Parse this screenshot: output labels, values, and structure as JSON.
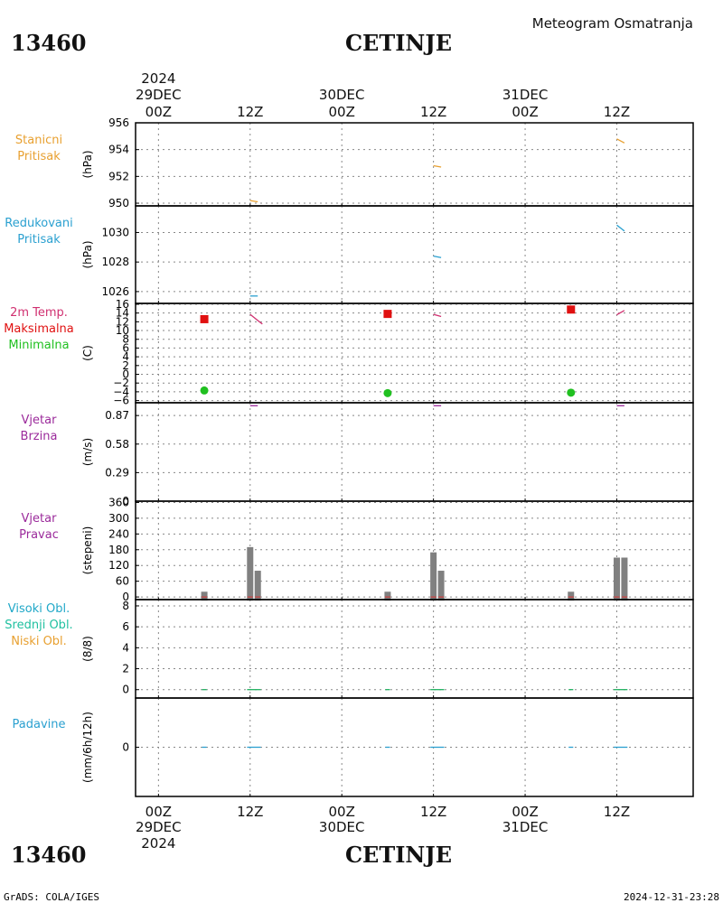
{
  "header": {
    "station_id": "13460",
    "station_name": "CETINJE",
    "product": "Meteogram Osmatranja"
  },
  "footer": {
    "left": "GrADS: COLA/IGES",
    "right": "2024-12-31-23:28"
  },
  "time_axis": {
    "year": "2024",
    "ticks": [
      {
        "hour": 0,
        "label": "00Z",
        "day": "29DEC"
      },
      {
        "hour": 12,
        "label": "12Z",
        "day": ""
      },
      {
        "hour": 24,
        "label": "00Z",
        "day": "30DEC"
      },
      {
        "hour": 36,
        "label": "12Z",
        "day": ""
      },
      {
        "hour": 48,
        "label": "00Z",
        "day": "31DEC"
      },
      {
        "hour": 60,
        "label": "12Z",
        "day": ""
      }
    ],
    "range_hours": [
      -3,
      70
    ]
  },
  "chart_data": [
    {
      "id": "pressure_station",
      "type": "line",
      "labels": [
        "Stanicni",
        "Pritisak"
      ],
      "label_color": "#e8a030",
      "unit": "(hPa)",
      "ylim": [
        949.8,
        956
      ],
      "yticks": [
        950,
        952,
        954,
        956
      ],
      "ytick_labels": [
        "950",
        "952",
        "954",
        "956"
      ],
      "series": [
        {
          "color": "#e8a030",
          "segments": [
            [
              [
                12,
                950.2
              ],
              [
                13,
                950.1
              ]
            ],
            [
              [
                36,
                952.8
              ],
              [
                37,
                952.7
              ]
            ],
            [
              [
                60,
                954.8
              ],
              [
                61,
                954.5
              ]
            ]
          ]
        }
      ]
    },
    {
      "id": "pressure_reduced",
      "type": "line",
      "labels": [
        "Redukovani",
        "Pritisak"
      ],
      "label_color": "#2aa0d0",
      "unit": "(hPa)",
      "ylim": [
        1025.2,
        1031.8
      ],
      "yticks": [
        1026,
        1028,
        1030
      ],
      "ytick_labels": [
        "1026",
        "1028",
        "1030"
      ],
      "series": [
        {
          "color": "#2aa0d0",
          "segments": [
            [
              [
                12,
                1025.7
              ],
              [
                13,
                1025.7
              ]
            ],
            [
              [
                36,
                1028.4
              ],
              [
                37,
                1028.3
              ]
            ],
            [
              [
                60,
                1030.5
              ],
              [
                61,
                1030.1
              ]
            ]
          ]
        }
      ]
    },
    {
      "id": "temperature",
      "type": "line",
      "labels": [
        "2m Temp.",
        "Maksimalna",
        "Minimalna"
      ],
      "label_colors": [
        "#d03070",
        "#e01010",
        "#20c020"
      ],
      "unit": "(C)",
      "ylim": [
        -6.5,
        16.2
      ],
      "yticks": [
        -6,
        -4,
        -2,
        0,
        2,
        4,
        6,
        8,
        10,
        12,
        14,
        16
      ],
      "ytick_labels": [
        "−6",
        "−4",
        "−2",
        "0",
        "2",
        "4",
        "6",
        "8",
        "10",
        "12",
        "14",
        "16"
      ],
      "series": [
        {
          "color": "#d03070",
          "segments": [
            [
              [
                12,
                13.7
              ],
              [
                13,
                12.3
              ],
              [
                13.6,
                11.5
              ]
            ],
            [
              [
                36,
                13.7
              ],
              [
                37,
                13.2
              ]
            ],
            [
              [
                60,
                13.6
              ],
              [
                61,
                14.6
              ]
            ]
          ]
        }
      ],
      "tmax": [
        [
          6,
          12.6
        ],
        [
          30,
          13.8
        ],
        [
          54,
          14.8
        ]
      ],
      "tmin": [
        [
          6,
          -3.7
        ],
        [
          30,
          -4.3
        ],
        [
          54,
          -4.2
        ]
      ]
    },
    {
      "id": "wind_speed",
      "type": "line",
      "labels": [
        "Vjetar",
        "Brzina"
      ],
      "label_color": "#9b2a9b",
      "unit": "(m/s)",
      "ylim": [
        0,
        1.0
      ],
      "yticks": [
        0,
        0.29,
        0.58,
        0.87
      ],
      "ytick_labels": [
        "0",
        "0.29",
        "0.58",
        "0.87"
      ],
      "series": [
        {
          "color": "#9b2a9b",
          "segments": [
            [
              [
                12,
                0.97
              ],
              [
                13,
                0.97
              ]
            ],
            [
              [
                36,
                0.97
              ],
              [
                37,
                0.97
              ]
            ],
            [
              [
                60,
                0.97
              ],
              [
                61,
                0.97
              ]
            ]
          ]
        }
      ]
    },
    {
      "id": "wind_direction",
      "type": "bar",
      "labels": [
        "Vjetar",
        "Pravac"
      ],
      "label_color": "#9b2a9b",
      "unit": "(stepeni)",
      "ylim": [
        -10,
        365
      ],
      "yticks": [
        0,
        60,
        120,
        180,
        240,
        300,
        360
      ],
      "ytick_labels": [
        "0",
        "60",
        "120",
        "180",
        "240",
        "300",
        "360"
      ],
      "bars": [
        [
          6,
          20
        ],
        [
          12,
          190
        ],
        [
          13,
          100
        ],
        [
          30,
          20
        ],
        [
          36,
          170
        ],
        [
          37,
          100
        ],
        [
          54,
          20
        ],
        [
          60,
          150
        ],
        [
          61,
          150
        ]
      ],
      "bar_color": "#808080"
    },
    {
      "id": "clouds",
      "type": "line",
      "labels": [
        "Visoki Obl.",
        "Srednji Obl.",
        "Niski Obl."
      ],
      "label_colors": [
        "#20a8c8",
        "#20c0a0",
        "#e8a030"
      ],
      "unit": "(8/8)",
      "ylim": [
        -0.8,
        8.6
      ],
      "yticks": [
        0,
        2,
        4,
        6,
        8
      ],
      "ytick_labels": [
        "0",
        "2",
        "4",
        "6",
        "8"
      ],
      "series": [
        {
          "color": "#20b060",
          "segments": [
            [
              [
                5.7,
                0
              ],
              [
                6.3,
                0
              ]
            ],
            [
              [
                11.6,
                0
              ],
              [
                13.4,
                0
              ]
            ],
            [
              [
                29.7,
                0
              ],
              [
                30.3,
                0
              ]
            ],
            [
              [
                35.6,
                0
              ],
              [
                37.4,
                0
              ]
            ],
            [
              [
                53.7,
                0
              ],
              [
                54.3,
                0
              ]
            ],
            [
              [
                59.6,
                0
              ],
              [
                61.4,
                0
              ]
            ]
          ]
        }
      ]
    },
    {
      "id": "precipitation",
      "type": "line",
      "labels": [
        "Padavine"
      ],
      "label_color": "#2aa0d0",
      "unit": "(mm/6h/12h)",
      "ylim": [
        -1,
        1
      ],
      "yticks": [
        0
      ],
      "ytick_labels": [
        "0"
      ],
      "series": [
        {
          "color": "#2aa0d0",
          "segments": [
            [
              [
                5.7,
                0
              ],
              [
                6.3,
                0
              ]
            ],
            [
              [
                11.6,
                0
              ],
              [
                13.4,
                0
              ]
            ],
            [
              [
                29.7,
                0
              ],
              [
                30.3,
                0
              ]
            ],
            [
              [
                35.6,
                0
              ],
              [
                37.4,
                0
              ]
            ],
            [
              [
                53.7,
                0
              ],
              [
                54.3,
                0
              ]
            ],
            [
              [
                59.6,
                0
              ],
              [
                61.4,
                0
              ]
            ]
          ]
        }
      ]
    }
  ]
}
